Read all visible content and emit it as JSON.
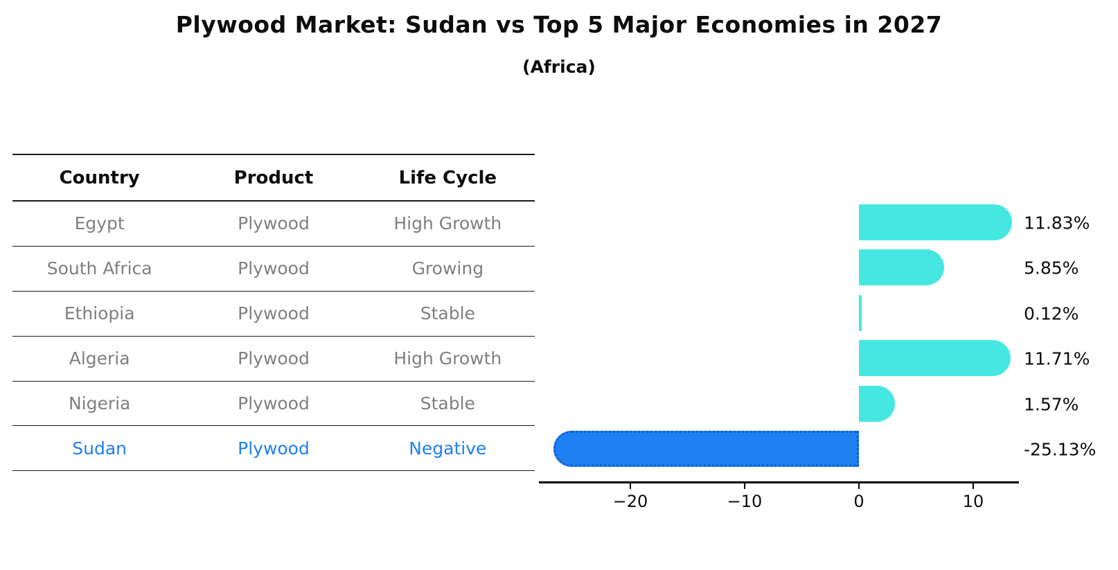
{
  "title": "Plywood Market: Sudan vs Top 5 Major Economies in 2027",
  "subtitle": "(Africa)",
  "colors": {
    "positive_bar": "#45e8e0",
    "negative_bar": "#1e7ff0",
    "negative_bar_border": "#0d5fd0",
    "table_text": "#7f7f7f",
    "highlight_text": "#1e7ff0",
    "header_text": "#0d0d0d"
  },
  "table": {
    "headers": [
      "Country",
      "Product",
      "Life Cycle"
    ],
    "rows": [
      {
        "country": "Egypt",
        "product": "Plywood",
        "life_cycle": "High Growth",
        "highlight": false
      },
      {
        "country": "South Africa",
        "product": "Plywood",
        "life_cycle": "Growing",
        "highlight": false
      },
      {
        "country": "Ethiopia",
        "product": "Plywood",
        "life_cycle": "Stable",
        "highlight": false
      },
      {
        "country": "Algeria",
        "product": "Plywood",
        "life_cycle": "High Growth",
        "highlight": false
      },
      {
        "country": "Nigeria",
        "product": "Plywood",
        "life_cycle": "Stable",
        "highlight": false
      },
      {
        "country": "Sudan",
        "product": "Plywood",
        "life_cycle": "Negative",
        "highlight": true
      }
    ]
  },
  "chart_data": {
    "type": "bar",
    "orientation": "horizontal",
    "title": "Plywood Market: Sudan vs Top 5 Major Economies in 2027 (Africa)",
    "categories": [
      "Egypt",
      "South Africa",
      "Ethiopia",
      "Algeria",
      "Nigeria",
      "Sudan"
    ],
    "values": [
      11.83,
      5.85,
      0.12,
      11.71,
      1.57,
      -25.13
    ],
    "value_labels": [
      "11.83%",
      "5.85%",
      "0.12%",
      "11.71%",
      "1.57%",
      "-25.13%"
    ],
    "unit": "%",
    "xticks": [
      -20,
      -10,
      0,
      10
    ],
    "xtick_labels": [
      "−20",
      "−10",
      "0",
      "10"
    ],
    "xlim": [
      -28,
      14
    ],
    "grid": false,
    "legend": false
  }
}
